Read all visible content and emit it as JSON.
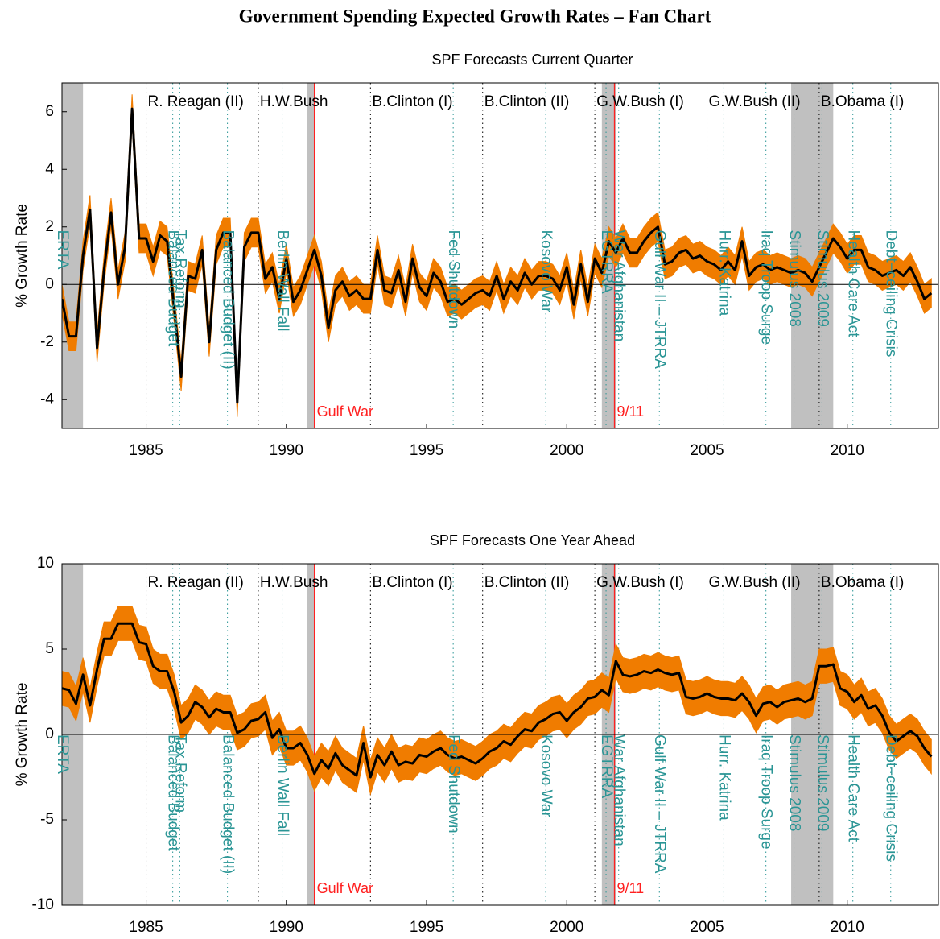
{
  "title": "Government Spending Expected Growth Rates – Fan Chart",
  "recessions": [
    [
      1981.5,
      1982.75
    ],
    [
      1990.75,
      1991.0
    ],
    [
      2001.25,
      2001.75
    ],
    [
      2008.0,
      2009.5
    ]
  ],
  "terms": [
    {
      "x": 1985,
      "label": "R. Reagan (II)"
    },
    {
      "x": 1989,
      "label": "H.W.Bush"
    },
    {
      "x": 1993,
      "label": "B.Clinton (I)"
    },
    {
      "x": 1997,
      "label": "B.Clinton (II)"
    },
    {
      "x": 2001,
      "label": "G.W.Bush (I)"
    },
    {
      "x": 2005,
      "label": "G.W.Bush (II)"
    },
    {
      "x": 2009,
      "label": "B.Obama (I)"
    }
  ],
  "events": [
    {
      "x": 1982,
      "label": "ERTA",
      "color": "#2a9595",
      "orientation": "vertical"
    },
    {
      "x": 1985.95,
      "label": "Balanced Budget",
      "color": "#2a9595",
      "orientation": "vertical"
    },
    {
      "x": 1986.2,
      "label": "Tax Reform",
      "color": "#2a9595",
      "orientation": "vertical"
    },
    {
      "x": 1987.9,
      "label": "Balanced Budget (II)",
      "color": "#2a9595",
      "orientation": "vertical"
    },
    {
      "x": 1989.85,
      "label": "Berlin Wall Fall",
      "color": "#2a9595",
      "orientation": "vertical"
    },
    {
      "x": 1991.0,
      "label": "Gulf War",
      "color": "#ff2020",
      "orientation": "horizontal"
    },
    {
      "x": 1995.95,
      "label": "Fed Shutdown",
      "color": "#2a9595",
      "orientation": "vertical"
    },
    {
      "x": 1999.25,
      "label": "Kosovo War",
      "color": "#2a9595",
      "orientation": "vertical"
    },
    {
      "x": 2001.4,
      "label": "EGTRRA",
      "color": "#2a9595",
      "orientation": "vertical"
    },
    {
      "x": 2001.7,
      "label": "9/11",
      "color": "#ff2020",
      "orientation": "horizontal"
    },
    {
      "x": 2001.85,
      "label": "War Afghanistan",
      "color": "#2a9595",
      "orientation": "vertical"
    },
    {
      "x": 2003.3,
      "label": "Gulf War II – JTRRA",
      "color": "#2a9595",
      "orientation": "vertical"
    },
    {
      "x": 2005.6,
      "label": "Hurr. Katrina",
      "color": "#2a9595",
      "orientation": "vertical"
    },
    {
      "x": 2007.1,
      "label": "Iraq Troop Surge",
      "color": "#2a9595",
      "orientation": "vertical"
    },
    {
      "x": 2008.1,
      "label": "Stimulus 2008",
      "color": "#2a9595",
      "orientation": "vertical"
    },
    {
      "x": 2009.1,
      "label": "Stimulus 2009",
      "color": "#2a9595",
      "orientation": "vertical"
    },
    {
      "x": 2010.2,
      "label": "Health Care Act",
      "color": "#2a9595",
      "orientation": "vertical"
    },
    {
      "x": 2011.55,
      "label": "Debt−ceiling Crisis",
      "color": "#2a9595",
      "orientation": "vertical"
    }
  ],
  "chart_data": [
    {
      "type": "line",
      "title": "SPF Forecasts Current Quarter",
      "y_label": "% Growth Rate",
      "color": "#000000",
      "fan_color": "#f07c00",
      "fan_halfwidth": 0.5,
      "xlim": [
        1982,
        2013.25
      ],
      "ylim": [
        -5,
        7
      ],
      "xticks": [
        1985,
        1990,
        1995,
        2000,
        2005,
        2010
      ],
      "yticks": [
        -4,
        -2,
        0,
        2,
        4,
        6
      ],
      "x": [
        1982,
        1982.25,
        1982.5,
        1982.75,
        1983,
        1983.25,
        1983.5,
        1983.75,
        1984,
        1984.25,
        1984.5,
        1984.75,
        1985,
        1985.25,
        1985.5,
        1985.75,
        1986,
        1986.25,
        1986.5,
        1986.75,
        1987,
        1987.25,
        1987.5,
        1987.75,
        1988,
        1988.25,
        1988.5,
        1988.75,
        1989,
        1989.25,
        1989.5,
        1989.75,
        1990,
        1990.25,
        1990.5,
        1990.75,
        1991,
        1991.25,
        1991.5,
        1991.75,
        1992,
        1992.25,
        1992.5,
        1992.75,
        1993,
        1993.25,
        1993.5,
        1993.75,
        1994,
        1994.25,
        1994.5,
        1994.75,
        1995,
        1995.25,
        1995.5,
        1995.75,
        1996,
        1996.25,
        1996.5,
        1996.75,
        1997,
        1997.25,
        1997.5,
        1997.75,
        1998,
        1998.25,
        1998.5,
        1998.75,
        1999,
        1999.25,
        1999.5,
        1999.75,
        2000,
        2000.25,
        2000.5,
        2000.75,
        2001,
        2001.25,
        2001.5,
        2001.75,
        2002,
        2002.25,
        2002.5,
        2002.75,
        2003,
        2003.25,
        2003.5,
        2003.75,
        2004,
        2004.25,
        2004.5,
        2004.75,
        2005,
        2005.25,
        2005.5,
        2005.75,
        2006,
        2006.25,
        2006.5,
        2006.75,
        2007,
        2007.25,
        2007.5,
        2007.75,
        2008,
        2008.25,
        2008.5,
        2008.75,
        2009,
        2009.25,
        2009.5,
        2009.75,
        2010,
        2010.25,
        2010.5,
        2010.75,
        2011,
        2011.25,
        2011.5,
        2011.75,
        2012,
        2012.25,
        2012.5,
        2012.75,
        2013
      ],
      "values": [
        -0.5,
        -1.8,
        -1.8,
        1.0,
        2.6,
        -2.2,
        0.5,
        2.5,
        0,
        1.3,
        6.1,
        1.6,
        1.6,
        0.8,
        1.7,
        1.5,
        -0.8,
        -3.2,
        0.3,
        0.2,
        1.2,
        -2.0,
        1.2,
        1.8,
        1.8,
        -4.1,
        1.3,
        1.8,
        1.8,
        0.2,
        0.6,
        -0.5,
        0.9,
        -0.6,
        -0.2,
        0.5,
        1.2,
        0.3,
        -1.5,
        -0.2,
        0.1,
        -0.4,
        -0.2,
        -0.5,
        -0.5,
        1.2,
        -0.2,
        -0.3,
        0.5,
        -0.6,
        0.9,
        -0.1,
        -0.4,
        0.4,
        0.1,
        -0.6,
        -0.5,
        -0.7,
        -0.5,
        -0.3,
        -0.2,
        -0.4,
        0.3,
        -0.5,
        0.1,
        -0.2,
        0.4,
        0,
        0.3,
        0.3,
        0.2,
        -0.2,
        0.6,
        -0.7,
        0.7,
        -0.6,
        0.9,
        0.4,
        1.5,
        1.1,
        1.6,
        1.1,
        1.1,
        1.5,
        1.8,
        2.0,
        0.7,
        0.8,
        1.1,
        1.2,
        0.9,
        1.0,
        0.8,
        0.7,
        0.5,
        0.8,
        0.5,
        1.5,
        0.3,
        0.6,
        0.7,
        0.5,
        0.6,
        0.5,
        0.4,
        0.5,
        0.4,
        0.1,
        0.6,
        1.1,
        1.6,
        1.3,
        0.9,
        1.2,
        1.2,
        0.6,
        0.5,
        0.3,
        0.4,
        0.5,
        0.3,
        0.6,
        0.1,
        -0.5,
        -0.3
      ]
    },
    {
      "type": "line",
      "title": "SPF Forecasts One Year Ahead",
      "y_label": "% Growth Rate",
      "color": "#000000",
      "fan_color": "#f07c00",
      "fan_halfwidth": 1.0,
      "xlim": [
        1982,
        2013.25
      ],
      "ylim": [
        -10,
        10
      ],
      "xticks": [
        1985,
        1990,
        1995,
        2000,
        2005,
        2010
      ],
      "yticks": [
        -10,
        -5,
        0,
        5,
        10
      ],
      "x": [
        1982,
        1982.25,
        1982.5,
        1982.75,
        1983,
        1983.25,
        1983.5,
        1983.75,
        1984,
        1984.25,
        1984.5,
        1984.75,
        1985,
        1985.25,
        1985.5,
        1985.75,
        1986,
        1986.25,
        1986.5,
        1986.75,
        1987,
        1987.25,
        1987.5,
        1987.75,
        1988,
        1988.25,
        1988.5,
        1988.75,
        1989,
        1989.25,
        1989.5,
        1989.75,
        1990,
        1990.25,
        1990.5,
        1990.75,
        1991,
        1991.25,
        1991.5,
        1991.75,
        1992,
        1992.25,
        1992.5,
        1992.75,
        1993,
        1993.25,
        1993.5,
        1993.75,
        1994,
        1994.25,
        1994.5,
        1994.75,
        1995,
        1995.25,
        1995.5,
        1995.75,
        1996,
        1996.25,
        1996.5,
        1996.75,
        1997,
        1997.25,
        1997.5,
        1997.75,
        1998,
        1998.25,
        1998.5,
        1998.75,
        1999,
        1999.25,
        1999.5,
        1999.75,
        2000,
        2000.25,
        2000.5,
        2000.75,
        2001,
        2001.25,
        2001.5,
        2001.75,
        2002,
        2002.25,
        2002.5,
        2002.75,
        2003,
        2003.25,
        2003.5,
        2003.75,
        2004,
        2004.25,
        2004.5,
        2004.75,
        2005,
        2005.25,
        2005.5,
        2005.75,
        2006,
        2006.25,
        2006.5,
        2006.75,
        2007,
        2007.25,
        2007.5,
        2007.75,
        2008,
        2008.25,
        2008.5,
        2008.75,
        2009,
        2009.25,
        2009.5,
        2009.75,
        2010,
        2010.25,
        2010.5,
        2010.75,
        2011,
        2011.25,
        2011.5,
        2011.75,
        2012,
        2012.25,
        2012.5,
        2012.75,
        2013
      ],
      "values": [
        2.7,
        2.6,
        1.8,
        3.5,
        1.7,
        3.8,
        5.6,
        5.6,
        6.5,
        6.5,
        6.5,
        5.4,
        5.3,
        4.0,
        3.7,
        3.7,
        2.5,
        0.7,
        1.1,
        1.9,
        1.6,
        1.0,
        1.5,
        1.3,
        1.3,
        0.1,
        0.3,
        0.8,
        0.9,
        1.3,
        -0.2,
        0.3,
        -0.8,
        -0.8,
        -0.5,
        -1.2,
        -2.3,
        -1.5,
        -2.0,
        -1.1,
        -1.8,
        -2.1,
        -2.4,
        -0.5,
        -2.5,
        -1.2,
        -1.8,
        -1.0,
        -1.8,
        -1.6,
        -1.7,
        -1.2,
        -1.3,
        -1.0,
        -0.8,
        -1.2,
        -1.4,
        -1.3,
        -1.5,
        -1.7,
        -1.4,
        -1.0,
        -0.8,
        -0.4,
        -0.6,
        -0.1,
        0.3,
        0.2,
        0.7,
        0.9,
        1.2,
        1.3,
        0.8,
        1.3,
        1.6,
        2.1,
        2.2,
        2.6,
        2.3,
        4.3,
        3.5,
        3.4,
        3.5,
        3.7,
        3.6,
        3.8,
        3.6,
        3.5,
        3.6,
        2.2,
        2.1,
        2.2,
        2.4,
        2.2,
        2.1,
        2.1,
        2.0,
        2.4,
        1.9,
        1.1,
        1.8,
        1.9,
        1.6,
        1.9,
        2.0,
        2.1,
        1.9,
        2.1,
        4.0,
        4.0,
        4.1,
        2.7,
        2.5,
        1.9,
        2.3,
        1.5,
        1.7,
        1.1,
        0.1,
        -0.4,
        -0.1,
        0.2,
        -0.1,
        -0.8,
        -1.3
      ]
    }
  ]
}
